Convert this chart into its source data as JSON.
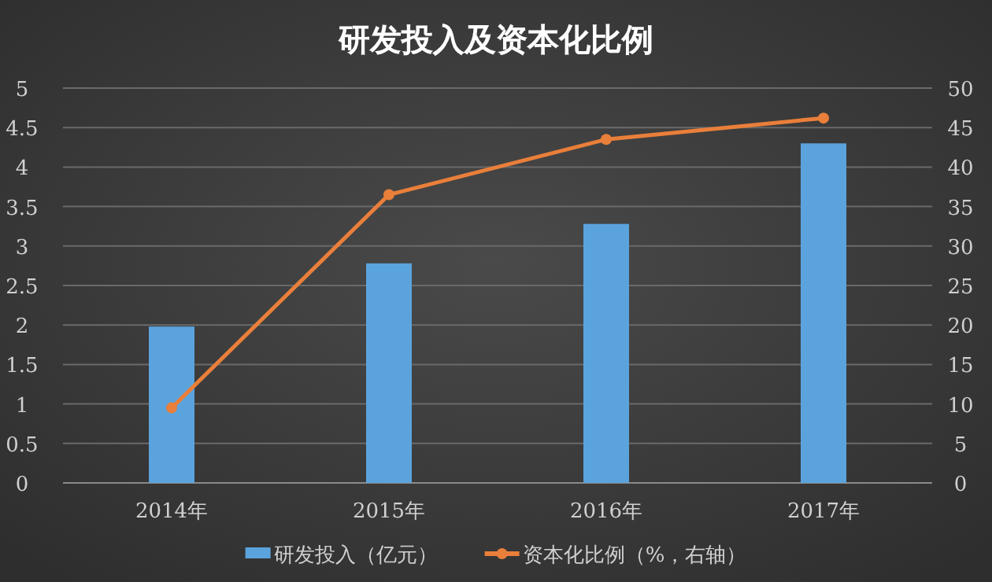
{
  "chart_data": {
    "type": "bar",
    "title": "研发投入及资本化比例",
    "categories": [
      "2014年",
      "2015年",
      "2016年",
      "2017年"
    ],
    "series": [
      {
        "name": "研发投入（亿元）",
        "color": "#5ba3dc",
        "values": [
          1.98,
          2.78,
          3.28,
          4.3
        ]
      },
      {
        "name": "资本化比例（%，右轴）",
        "type": "line",
        "axis": "y2",
        "color": "#e97f3a",
        "marker": "circle",
        "values": [
          9.5,
          36.5,
          43.5,
          46.2
        ]
      }
    ],
    "ylim": [
      0,
      5
    ],
    "yticks": [
      0,
      {
        "value": 0.5,
        "label": "0.5"
      },
      1,
      {
        "value": 1.5,
        "label": "1.5"
      },
      2,
      {
        "value": 2.5,
        "label": "2.5"
      },
      3,
      {
        "value": 3.5,
        "label": "3.5"
      },
      4,
      {
        "value": 4.5,
        "label": "4.5"
      },
      5
    ],
    "y2lim": [
      0,
      50
    ],
    "y2ticks": [
      0,
      5,
      10,
      15,
      20,
      25,
      30,
      35,
      40,
      45,
      50
    ],
    "grid": "y",
    "legend": "bottom"
  }
}
